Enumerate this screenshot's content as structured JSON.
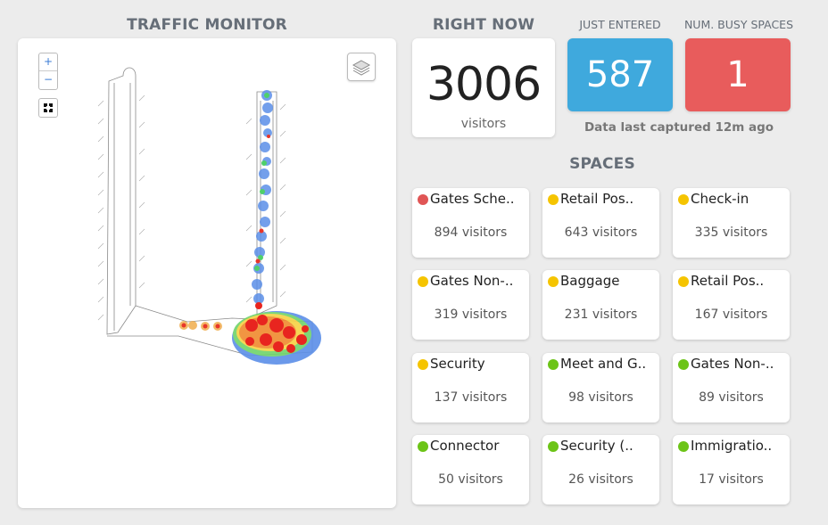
{
  "traffic_monitor": {
    "title": "TRAFFIC MONITOR",
    "zoom_in": "+",
    "zoom_out": "−"
  },
  "right_now": {
    "title": "RIGHT NOW",
    "value": "3006",
    "unit": "visitors"
  },
  "just_entered": {
    "title": "JUST ENTERED",
    "value": "587",
    "color": "#3fa9dd"
  },
  "busy_spaces": {
    "title": "NUM. BUSY SPACES",
    "value": "1",
    "color": "#e85c5c"
  },
  "last_captured": "Data last captured 12m ago",
  "spaces": {
    "title": "SPACES",
    "items": [
      {
        "name": "Gates Sche..",
        "visitors": "894 visitors",
        "status": "red"
      },
      {
        "name": "Retail Pos..",
        "visitors": "643 visitors",
        "status": "yellow"
      },
      {
        "name": "Check-in",
        "visitors": "335 visitors",
        "status": "yellow"
      },
      {
        "name": "Gates Non-..",
        "visitors": "319 visitors",
        "status": "yellow"
      },
      {
        "name": "Baggage",
        "visitors": "231 visitors",
        "status": "yellow"
      },
      {
        "name": "Retail Pos..",
        "visitors": "167 visitors",
        "status": "yellow"
      },
      {
        "name": "Security",
        "visitors": "137 visitors",
        "status": "yellow"
      },
      {
        "name": "Meet and G..",
        "visitors": "98 visitors",
        "status": "green"
      },
      {
        "name": "Gates Non-..",
        "visitors": "89 visitors",
        "status": "green"
      },
      {
        "name": "Connector",
        "visitors": "50 visitors",
        "status": "green"
      },
      {
        "name": "Security (..",
        "visitors": "26 visitors",
        "status": "green"
      },
      {
        "name": "Immigratio..",
        "visitors": "17 visitors",
        "status": "green"
      }
    ]
  },
  "status_colors": {
    "red": "#e05555",
    "yellow": "#f5c400",
    "green": "#6cc417"
  }
}
